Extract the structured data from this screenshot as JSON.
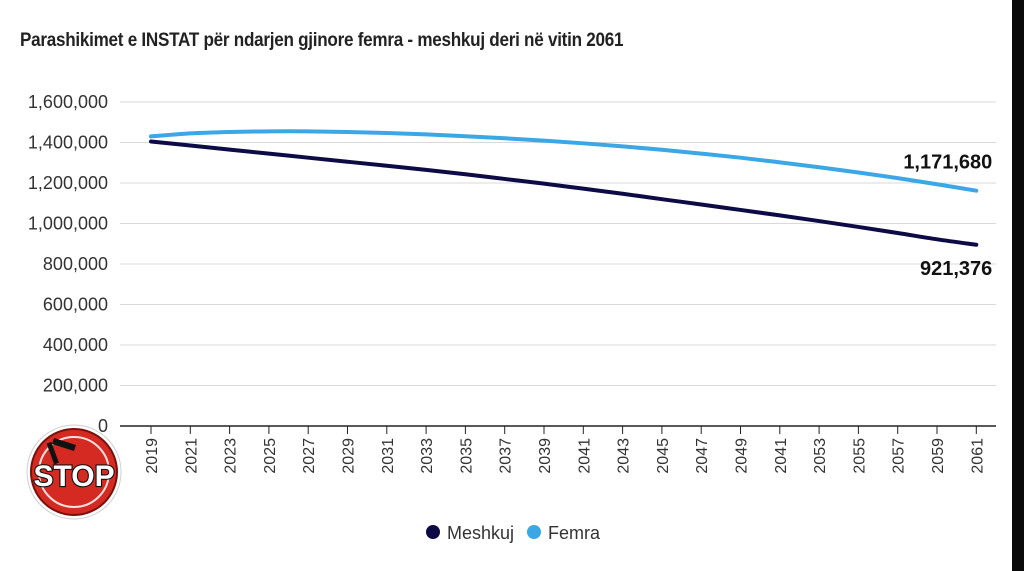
{
  "colors": {
    "meshkuj": "#0d0b45",
    "femra": "#3ba7e4",
    "grid": "#d9d9d9",
    "logo_red": "#d42a21"
  },
  "logo": {
    "icon": "stop-logo-icon",
    "text": "STOP"
  },
  "chart_data": {
    "type": "line",
    "title": "Parashikimet e INSTAT për ndarjen gjinore femra - meshkuj deri në vitin 2061",
    "xlabel": "",
    "ylabel": "",
    "ylim": [
      0,
      1600000
    ],
    "yticks": [
      "0",
      "200,000",
      "400,000",
      "600,000",
      "800,000",
      "1,000,000",
      "1,200,000",
      "1,400,000",
      "1,600,000"
    ],
    "x": [
      "2019",
      "2021",
      "2023",
      "2025",
      "2027",
      "2029",
      "2031",
      "2033",
      "2035",
      "2037",
      "2039",
      "2041",
      "2043",
      "2045",
      "2047",
      "2049",
      "2041",
      "2053",
      "2055",
      "2057",
      "2059",
      "2061"
    ],
    "series": [
      {
        "name": "Meshkuj",
        "color": "#0d0b45",
        "values": [
          1405000,
          1385000,
          1365000,
          1345000,
          1325000,
          1305000,
          1285000,
          1265000,
          1243000,
          1220000,
          1197000,
          1172000,
          1147000,
          1120000,
          1094000,
          1067000,
          1040000,
          1012000,
          983000,
          953000,
          922000,
          895000
        ]
      },
      {
        "name": "Femra",
        "color": "#3ba7e4",
        "values": [
          1430000,
          1445000,
          1452000,
          1455000,
          1455000,
          1452000,
          1447000,
          1440000,
          1431000,
          1421000,
          1409000,
          1396000,
          1381000,
          1364000,
          1345000,
          1325000,
          1302000,
          1278000,
          1252000,
          1224000,
          1194000,
          1162000
        ]
      }
    ],
    "annotations": [
      {
        "text": "1,171,680",
        "series": "Femra"
      },
      {
        "text": "921,376",
        "series": "Meshkuj"
      }
    ],
    "legend_position": "bottom",
    "grid": true
  }
}
